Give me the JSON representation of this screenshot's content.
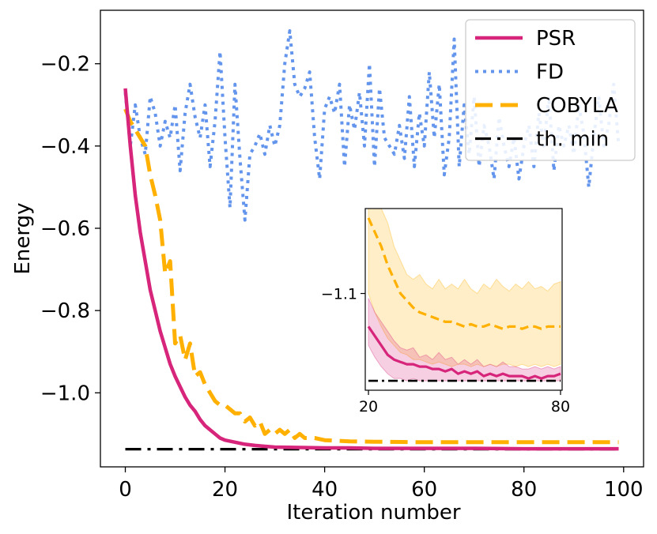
{
  "chart_data": [
    {
      "type": "line",
      "xlabel": "Iteration number",
      "ylabel": "Energy",
      "xlim": [
        -5,
        104
      ],
      "ylim": [
        -1.18,
        -0.07
      ],
      "xticks": [
        0,
        20,
        40,
        60,
        80,
        100
      ],
      "xtick_labels": [
        "0",
        "20",
        "40",
        "60",
        "80",
        "100"
      ],
      "yticks": [
        -0.2,
        -0.4,
        -0.6,
        -0.8,
        -1.0
      ],
      "ytick_labels": [
        "−0.2",
        "−0.4",
        "−0.6",
        "−0.8",
        "−1.0"
      ],
      "grid": false,
      "legend_position": "top-right",
      "series": [
        {
          "name": "PSR",
          "color": "#d6257a",
          "style": "solid",
          "x": [
            0,
            1,
            2,
            3,
            4,
            5,
            6,
            7,
            8,
            9,
            10,
            11,
            12,
            13,
            14,
            15,
            16,
            17,
            18,
            19,
            20,
            22,
            24,
            26,
            28,
            30,
            35,
            40,
            45,
            50,
            60,
            70,
            80,
            90,
            99
          ],
          "y": [
            -0.26,
            -0.4,
            -0.52,
            -0.61,
            -0.68,
            -0.75,
            -0.8,
            -0.85,
            -0.89,
            -0.93,
            -0.96,
            -0.985,
            -1.01,
            -1.03,
            -1.045,
            -1.065,
            -1.08,
            -1.09,
            -1.1,
            -1.11,
            -1.115,
            -1.12,
            -1.125,
            -1.128,
            -1.13,
            -1.132,
            -1.133,
            -1.134,
            -1.134,
            -1.135,
            -1.135,
            -1.135,
            -1.136,
            -1.136,
            -1.136
          ]
        },
        {
          "name": "FD",
          "color": "#6495ed",
          "style": "dotted",
          "x": [
            0,
            1,
            2,
            3,
            4,
            5,
            6,
            7,
            8,
            9,
            10,
            11,
            12,
            13,
            14,
            15,
            16,
            17,
            18,
            19,
            20,
            21,
            22,
            23,
            24,
            25,
            26,
            27,
            28,
            29,
            30,
            31,
            32,
            33,
            34,
            35,
            36,
            37,
            38,
            39,
            40,
            41,
            42,
            43,
            44,
            45,
            46,
            47,
            48,
            49,
            50,
            51,
            52,
            53,
            54,
            55,
            56,
            57,
            58,
            59,
            60,
            61,
            62,
            63,
            64,
            65,
            66,
            67,
            68,
            69,
            70,
            71,
            72,
            73,
            74,
            75,
            76,
            77,
            78,
            79,
            80,
            81,
            82,
            83,
            84,
            85,
            86,
            87,
            88,
            89,
            90,
            91,
            92,
            93,
            94,
            95,
            96,
            97,
            98,
            99
          ],
          "y": [
            -0.27,
            -0.4,
            -0.3,
            -0.38,
            -0.42,
            -0.28,
            -0.32,
            -0.4,
            -0.34,
            -0.38,
            -0.3,
            -0.46,
            -0.32,
            -0.25,
            -0.33,
            -0.38,
            -0.3,
            -0.45,
            -0.34,
            -0.17,
            -0.38,
            -0.55,
            -0.25,
            -0.43,
            -0.58,
            -0.42,
            -0.4,
            -0.37,
            -0.42,
            -0.35,
            -0.4,
            -0.35,
            -0.2,
            -0.12,
            -0.25,
            -0.28,
            -0.26,
            -0.22,
            -0.38,
            -0.48,
            -0.31,
            -0.28,
            -0.32,
            -0.25,
            -0.45,
            -0.3,
            -0.36,
            -0.27,
            -0.4,
            -0.2,
            -0.45,
            -0.26,
            -0.38,
            -0.4,
            -0.42,
            -0.35,
            -0.43,
            -0.28,
            -0.45,
            -0.32,
            -0.4,
            -0.22,
            -0.38,
            -0.25,
            -0.47,
            -0.38,
            -0.14,
            -0.45,
            -0.3,
            -0.42,
            -0.28,
            -0.45,
            -0.35,
            -0.4,
            -0.48,
            -0.33,
            -0.4,
            -0.45,
            -0.38,
            -0.48,
            -0.4,
            -0.35,
            -0.45,
            -0.32,
            -0.4,
            -0.28,
            -0.46,
            -0.35,
            -0.4,
            -0.35,
            -0.42,
            -0.3,
            -0.37,
            -0.5,
            -0.38,
            -0.28,
            -0.4,
            -0.35,
            -0.25,
            -0.4
          ]
        },
        {
          "name": "COBYLA",
          "color": "#ffb000",
          "style": "dashed",
          "x": [
            0,
            1,
            2,
            3,
            4,
            5,
            6,
            7,
            8,
            9,
            10,
            11,
            12,
            13,
            14,
            15,
            16,
            17,
            18,
            19,
            20,
            21,
            22,
            23,
            24,
            25,
            26,
            27,
            28,
            29,
            30,
            31,
            32,
            33,
            34,
            35,
            36,
            38,
            40,
            45,
            50,
            60,
            70,
            80,
            90,
            99
          ],
          "y": [
            -0.31,
            -0.34,
            -0.36,
            -0.38,
            -0.4,
            -0.47,
            -0.52,
            -0.58,
            -0.71,
            -0.68,
            -0.88,
            -0.86,
            -0.92,
            -0.88,
            -0.96,
            -0.95,
            -0.98,
            -1.0,
            -1.02,
            -1.03,
            -1.03,
            -1.04,
            -1.05,
            -1.05,
            -1.07,
            -1.06,
            -1.08,
            -1.07,
            -1.1,
            -1.09,
            -1.1,
            -1.09,
            -1.1,
            -1.09,
            -1.11,
            -1.1,
            -1.11,
            -1.11,
            -1.115,
            -1.118,
            -1.119,
            -1.12,
            -1.12,
            -1.12,
            -1.12,
            -1.12
          ]
        },
        {
          "name": "th. min",
          "color": "#000000",
          "style": "dashdot",
          "x": [
            0,
            99
          ],
          "y": [
            -1.137,
            -1.137
          ]
        }
      ]
    },
    {
      "type": "line",
      "xlim": [
        19,
        80.5
      ],
      "ylim": [
        -1.141,
        -1.064
      ],
      "xticks": [
        20,
        80
      ],
      "xtick_labels": [
        "20",
        "80"
      ],
      "yticks": [
        -1.1
      ],
      "ytick_labels": [
        "−1.1"
      ],
      "grid": false,
      "series": [
        {
          "name": "PSR",
          "color": "#d6257a",
          "x": [
            20,
            22,
            24,
            26,
            28,
            30,
            32,
            34,
            36,
            38,
            40,
            42,
            44,
            46,
            48,
            50,
            52,
            54,
            56,
            58,
            60,
            62,
            64,
            66,
            68,
            70,
            72,
            74,
            76,
            78,
            80
          ],
          "y": [
            -1.114,
            -1.118,
            -1.122,
            -1.126,
            -1.128,
            -1.129,
            -1.13,
            -1.13,
            -1.131,
            -1.131,
            -1.132,
            -1.132,
            -1.133,
            -1.132,
            -1.134,
            -1.133,
            -1.134,
            -1.133,
            -1.135,
            -1.134,
            -1.135,
            -1.134,
            -1.135,
            -1.135,
            -1.135,
            -1.136,
            -1.135,
            -1.136,
            -1.135,
            -1.135,
            -1.134
          ],
          "y_low": [
            -1.122,
            -1.127,
            -1.131,
            -1.134,
            -1.136,
            -1.136,
            -1.137,
            -1.136,
            -1.137,
            -1.137,
            -1.137,
            -1.137,
            -1.137,
            -1.137,
            -1.137,
            -1.137,
            -1.137,
            -1.137,
            -1.137,
            -1.137,
            -1.137,
            -1.137,
            -1.137,
            -1.137,
            -1.137,
            -1.137,
            -1.137,
            -1.137,
            -1.137,
            -1.137,
            -1.137
          ],
          "y_high": [
            -1.102,
            -1.108,
            -1.112,
            -1.116,
            -1.12,
            -1.123,
            -1.124,
            -1.123,
            -1.127,
            -1.126,
            -1.128,
            -1.125,
            -1.128,
            -1.127,
            -1.13,
            -1.128,
            -1.13,
            -1.128,
            -1.131,
            -1.13,
            -1.131,
            -1.129,
            -1.131,
            -1.131,
            -1.132,
            -1.132,
            -1.131,
            -1.132,
            -1.131,
            -1.132,
            -1.131
          ]
        },
        {
          "name": "COBYLA",
          "color": "#ffb000",
          "x": [
            20,
            22,
            24,
            26,
            28,
            30,
            32,
            34,
            36,
            38,
            40,
            42,
            44,
            46,
            48,
            50,
            52,
            54,
            56,
            58,
            60,
            62,
            64,
            66,
            68,
            70,
            72,
            74,
            76,
            78,
            80
          ],
          "y": [
            -1.068,
            -1.074,
            -1.08,
            -1.088,
            -1.094,
            -1.1,
            -1.103,
            -1.106,
            -1.108,
            -1.109,
            -1.11,
            -1.111,
            -1.112,
            -1.112,
            -1.113,
            -1.114,
            -1.113,
            -1.114,
            -1.114,
            -1.113,
            -1.114,
            -1.115,
            -1.114,
            -1.114,
            -1.115,
            -1.114,
            -1.114,
            -1.115,
            -1.114,
            -1.114,
            -1.114
          ],
          "y_low": [
            -1.1,
            -1.108,
            -1.114,
            -1.119,
            -1.122,
            -1.125,
            -1.126,
            -1.128,
            -1.128,
            -1.129,
            -1.13,
            -1.129,
            -1.13,
            -1.131,
            -1.13,
            -1.13,
            -1.131,
            -1.13,
            -1.131,
            -1.13,
            -1.131,
            -1.13,
            -1.13,
            -1.131,
            -1.13,
            -1.131,
            -1.13,
            -1.131,
            -1.13,
            -1.131,
            -1.13
          ],
          "y_high": [
            -1.064,
            -1.064,
            -1.064,
            -1.07,
            -1.08,
            -1.086,
            -1.092,
            -1.094,
            -1.092,
            -1.096,
            -1.098,
            -1.094,
            -1.098,
            -1.096,
            -1.098,
            -1.094,
            -1.098,
            -1.1,
            -1.096,
            -1.098,
            -1.094,
            -1.097,
            -1.099,
            -1.096,
            -1.098,
            -1.095,
            -1.098,
            -1.097,
            -1.099,
            -1.096,
            -1.095
          ]
        },
        {
          "name": "th. min",
          "color": "#000000",
          "x": [
            20,
            80
          ],
          "y": [
            -1.137,
            -1.137
          ]
        }
      ]
    }
  ]
}
